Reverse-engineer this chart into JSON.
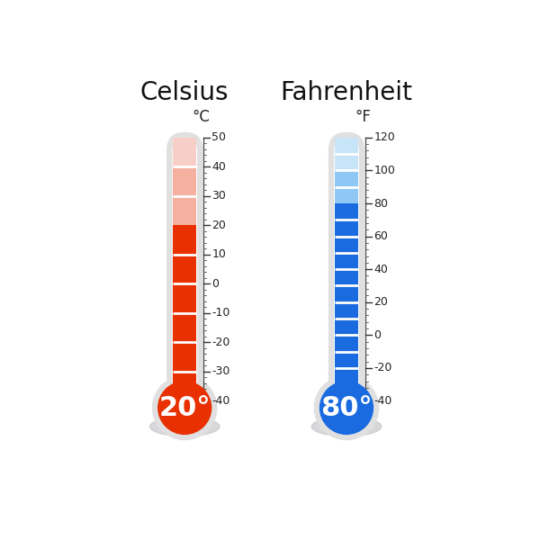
{
  "bg_color": "#ffffff",
  "title_celsius": "Celsius",
  "title_fahrenheit": "Fahrenheit",
  "unit_celsius": "°C",
  "unit_fahrenheit": "°F",
  "celsius_value": 20,
  "fahrenheit_value": 80,
  "celsius_label": "20°",
  "fahrenheit_label": "80°",
  "celsius_scale_min": -40,
  "celsius_scale_max": 50,
  "celsius_scale_ticks": [
    -40,
    -30,
    -20,
    -10,
    0,
    10,
    20,
    30,
    40,
    50
  ],
  "fahrenheit_scale_min": -40,
  "fahrenheit_scale_max": 120,
  "fahrenheit_scale_ticks": [
    -40,
    -20,
    0,
    20,
    40,
    60,
    80,
    100,
    120
  ],
  "red_main": "#e83000",
  "red_light": "#f5b0a0",
  "red_lightest": "#f8cfc8",
  "blue_main": "#1a6ae0",
  "blue_light": "#90c8f5",
  "blue_lightest": "#c8e4f8",
  "tube_bg": "#e0e0e0",
  "shadow_color": "#c8c8cc",
  "white": "#ffffff",
  "title_fontsize": 20,
  "unit_fontsize": 12,
  "tick_fontsize": 9,
  "value_fontsize": 22
}
